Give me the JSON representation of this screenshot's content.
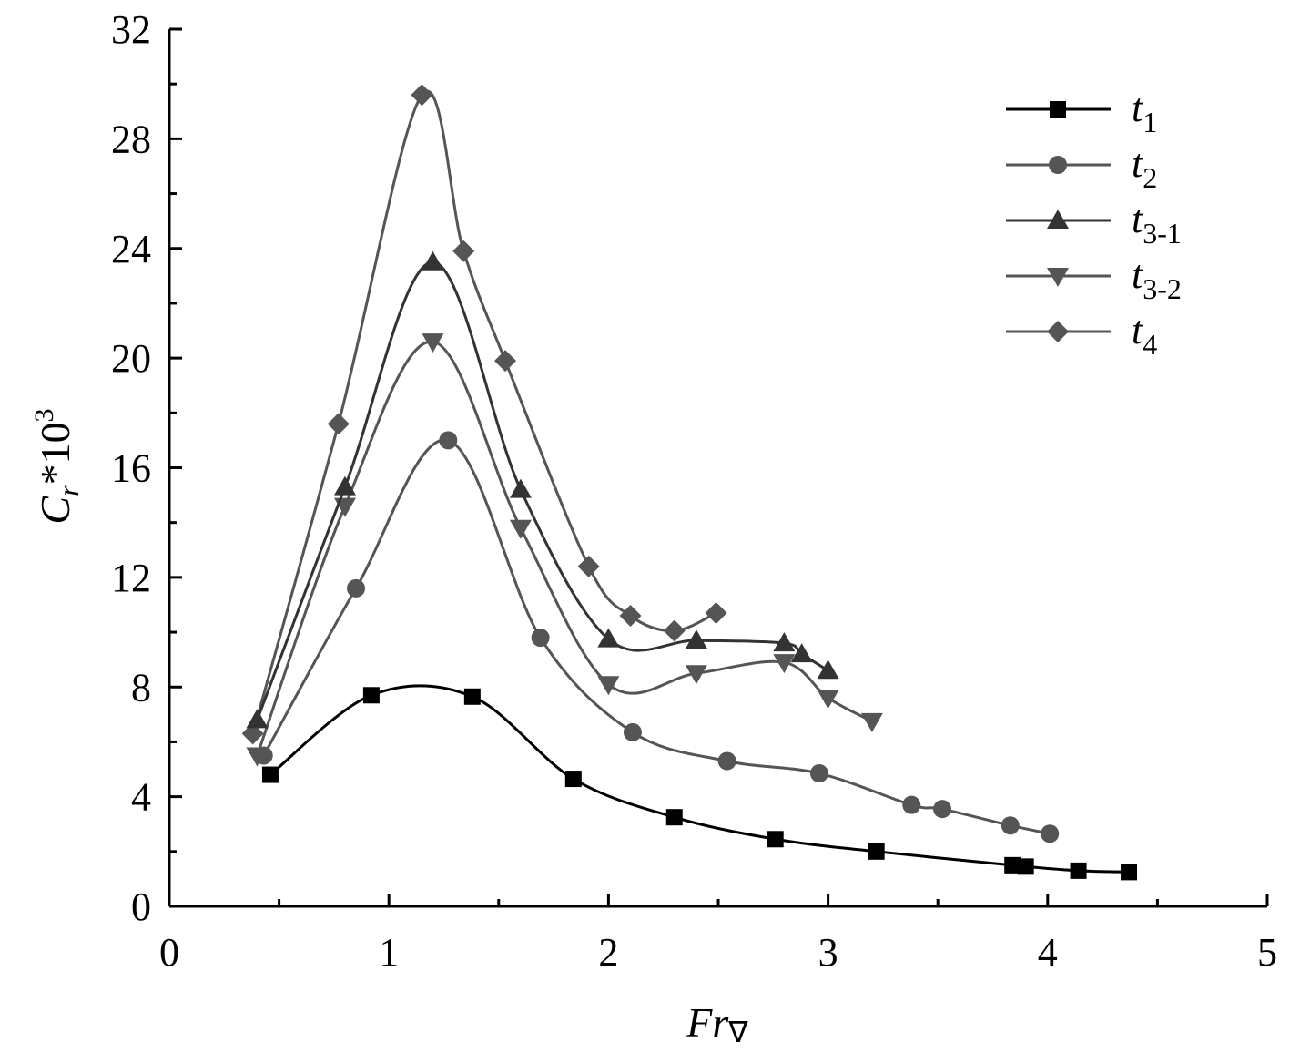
{
  "chart_data": {
    "type": "line",
    "xlabel": "Fr",
    "xlabel_sub": "∇",
    "ylabel_main": "C",
    "ylabel_sub": "r",
    "ylabel_rest": "*10",
    "ylabel_sup": "3",
    "xlim": [
      0,
      5
    ],
    "ylim": [
      0,
      32
    ],
    "x_ticks": [
      "0",
      "1",
      "2",
      "3",
      "4",
      "5"
    ],
    "y_ticks": [
      "0",
      "4",
      "8",
      "12",
      "16",
      "20",
      "24",
      "28",
      "32"
    ],
    "grid": false,
    "legend_position": "top-right",
    "series": [
      {
        "name": "t",
        "name_sub": "1",
        "marker": "square",
        "color": "#000000",
        "points": [
          [
            0.46,
            4.8
          ],
          [
            0.92,
            7.7
          ],
          [
            1.38,
            7.65
          ],
          [
            1.84,
            4.65
          ],
          [
            2.3,
            3.25
          ],
          [
            2.76,
            2.45
          ],
          [
            3.22,
            2.0
          ],
          [
            3.84,
            1.5
          ],
          [
            3.9,
            1.45
          ],
          [
            4.14,
            1.3
          ],
          [
            4.37,
            1.25
          ]
        ]
      },
      {
        "name": "t",
        "name_sub": "2",
        "marker": "circle",
        "color": "#555555",
        "points": [
          [
            0.43,
            5.5
          ],
          [
            0.85,
            11.6
          ],
          [
            1.27,
            17.0
          ],
          [
            1.69,
            9.8
          ],
          [
            2.11,
            6.35
          ],
          [
            2.54,
            5.3
          ],
          [
            2.96,
            4.85
          ],
          [
            3.38,
            3.7
          ],
          [
            3.52,
            3.55
          ],
          [
            3.83,
            2.95
          ],
          [
            4.01,
            2.65
          ]
        ]
      },
      {
        "name": "t",
        "name_sub": "3-1",
        "marker": "triangle-up",
        "color": "#333333",
        "points": [
          [
            0.4,
            6.8
          ],
          [
            0.8,
            15.3
          ],
          [
            1.2,
            23.5
          ],
          [
            1.6,
            15.2
          ],
          [
            2.0,
            9.75
          ],
          [
            2.4,
            9.7
          ],
          [
            2.8,
            9.6
          ],
          [
            2.88,
            9.2
          ],
          [
            3.0,
            8.6
          ]
        ]
      },
      {
        "name": "t",
        "name_sub": "3-2",
        "marker": "triangle-down",
        "color": "#555555",
        "points": [
          [
            0.4,
            5.5
          ],
          [
            0.8,
            14.6
          ],
          [
            1.2,
            20.6
          ],
          [
            1.6,
            13.8
          ],
          [
            2.0,
            8.1
          ],
          [
            2.4,
            8.5
          ],
          [
            2.8,
            8.9
          ],
          [
            3.0,
            7.6
          ],
          [
            3.2,
            6.75
          ]
        ]
      },
      {
        "name": "t",
        "name_sub": "4",
        "marker": "diamond",
        "color": "#555555",
        "points": [
          [
            0.38,
            6.3
          ],
          [
            0.77,
            17.6
          ],
          [
            1.15,
            29.6
          ],
          [
            1.34,
            23.9
          ],
          [
            1.53,
            19.9
          ],
          [
            1.91,
            12.4
          ],
          [
            2.1,
            10.6
          ],
          [
            2.3,
            10.05
          ],
          [
            2.49,
            10.7
          ]
        ]
      }
    ]
  }
}
